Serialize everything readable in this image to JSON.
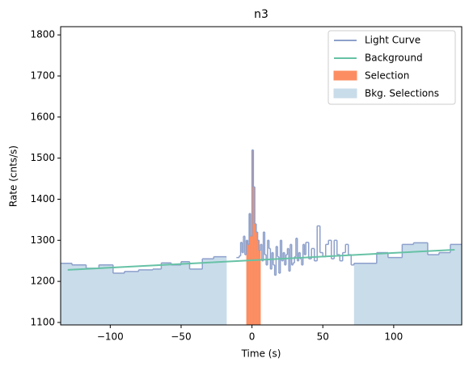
{
  "chart_data": {
    "type": "step",
    "title": "n3",
    "xlabel": "Time (s)",
    "ylabel": "Rate (cnts/s)",
    "xlim": [
      -135,
      148
    ],
    "ylim": [
      1094,
      1820
    ],
    "xticks": [
      {
        "value": -100,
        "label": "−100"
      },
      {
        "value": -50,
        "label": "−50"
      },
      0,
      50,
      100
    ],
    "yticks": [
      1100,
      1200,
      1300,
      1400,
      1500,
      1600,
      1700,
      1800
    ],
    "legend": "upper right",
    "series": [
      {
        "name": "Light Curve",
        "color": "#8da0cb",
        "bins": [
          -135,
          -127,
          -117,
          -108,
          -98,
          -90,
          -80,
          -70,
          -64,
          -57,
          -50,
          -44,
          -35,
          -27,
          -18,
          -11,
          -9,
          -8,
          -7,
          -6,
          -5,
          -4,
          -3,
          -2,
          -1,
          0,
          1,
          2,
          3,
          4,
          5,
          6,
          7,
          8,
          9,
          10,
          11,
          12,
          13,
          14,
          15,
          16,
          17,
          18,
          19,
          20,
          21,
          22,
          23,
          24,
          25,
          26,
          27,
          28,
          29,
          30,
          31,
          32,
          33,
          34,
          35,
          36,
          37,
          38,
          40,
          42,
          44,
          46,
          48,
          50,
          52,
          54,
          56,
          58,
          60,
          62,
          64,
          66,
          68,
          70,
          72,
          88,
          96,
          106,
          114,
          124,
          132,
          140,
          148
        ],
        "values": [
          1244,
          1240,
          1232,
          1240,
          1220,
          1224,
          1228,
          1230,
          1245,
          1240,
          1248,
          1230,
          1255,
          1260,
          null,
          1258,
          1262,
          1295,
          1270,
          1310,
          1265,
          1300,
          1290,
          1365,
          1310,
          1520,
          1430,
          1340,
          1320,
          1300,
          1275,
          1290,
          1250,
          1320,
          1265,
          1240,
          1300,
          1280,
          1230,
          1270,
          1240,
          1215,
          1285,
          1260,
          1220,
          1300,
          1250,
          1270,
          1240,
          1265,
          1280,
          1225,
          1290,
          1240,
          1245,
          1260,
          1305,
          1250,
          1270,
          1255,
          1240,
          1290,
          1265,
          1295,
          1255,
          1280,
          1250,
          1335,
          1270,
          1260,
          1290,
          1300,
          1255,
          1300,
          1265,
          1250,
          1270,
          1290,
          1265,
          1240,
          1244,
          1270,
          1258,
          1290,
          1294,
          1265,
          1270,
          1290
        ]
      },
      {
        "name": "Background",
        "color": "#66c2a5",
        "x": [
          -130,
          143
        ],
        "values": [
          1228,
          1277
        ]
      }
    ],
    "selections": [
      {
        "name": "Selection",
        "color": "#fc8d62",
        "ranges": [
          [
            -4,
            6
          ]
        ]
      },
      {
        "name": "Bkg. Selections",
        "color": "#c9dcea",
        "ranges": [
          [
            -135,
            -18
          ],
          [
            72,
            148
          ]
        ]
      }
    ]
  }
}
